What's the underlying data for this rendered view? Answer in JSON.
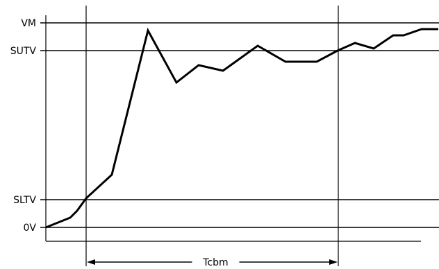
{
  "chart_data": {
    "type": "line",
    "title": "",
    "xlabel": "",
    "ylabel": "",
    "reference_levels": [
      {
        "label": "VM",
        "value": 295
      },
      {
        "label": "SUTV",
        "value": 255
      },
      {
        "label": "SLTV",
        "value": 40
      },
      {
        "label": "0V",
        "value": 0
      }
    ],
    "ylim": [
      -20,
      320
    ],
    "xlim": [
      0,
      565
    ],
    "x": [
      0,
      35,
      45,
      58,
      95,
      147,
      188,
      220,
      255,
      305,
      345,
      390,
      420,
      445,
      472,
      500,
      515,
      541,
      565
    ],
    "y": [
      0,
      14,
      24,
      42,
      76,
      284,
      209,
      234,
      226,
      262,
      239,
      239,
      255,
      266,
      258,
      277,
      277,
      286,
      286
    ],
    "interval": {
      "label": "Tcbm",
      "start_x": 58,
      "end_x": 421
    },
    "grid": false,
    "legend": "none"
  }
}
